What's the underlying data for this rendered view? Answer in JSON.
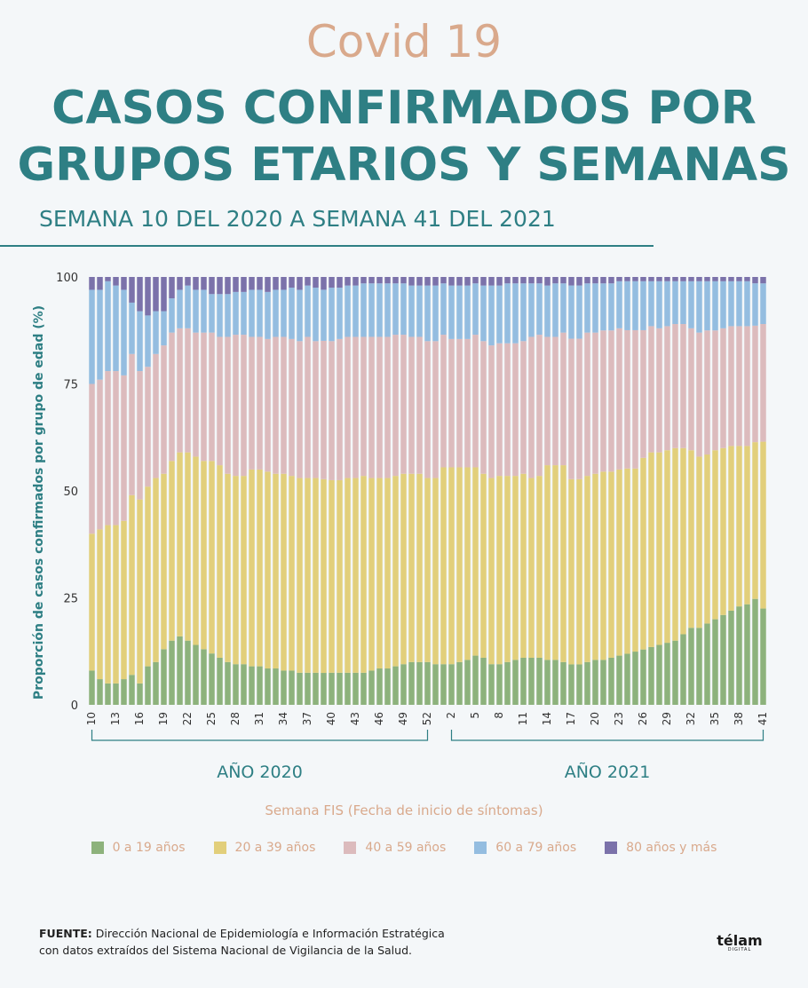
{
  "header": {
    "kicker": "Covid 19",
    "title_line1": "CASOS CONFIRMADOS POR",
    "title_line2": "GRUPOS ETARIOS Y SEMANAS",
    "subtitle": "SEMANA 10 DEL 2020 A SEMANA 41 DEL 2021"
  },
  "footer": {
    "source_label": "FUENTE:",
    "source_line1": "Dirección Nacional de Epidemiología e Información Estratégica",
    "source_line2": "con datos extraídos del Sistema Nacional de Vigilancia de la Salud.",
    "logo": "télam",
    "logo_sub": "DIGITAL"
  },
  "chart_data": {
    "type": "bar",
    "stacked": true,
    "ylabel": "Proporción de casos confirmados por grupo de edad (%)",
    "xlabel": "Semana FIS (Fecha de inicio de síntomas)",
    "ylim": [
      0,
      100
    ],
    "yticks": [
      0,
      25,
      50,
      75,
      100
    ],
    "grid": false,
    "legend_position": "bottom",
    "x": [
      10,
      11,
      12,
      13,
      14,
      15,
      16,
      17,
      18,
      19,
      20,
      21,
      22,
      23,
      24,
      25,
      26,
      27,
      28,
      29,
      30,
      31,
      32,
      33,
      34,
      35,
      36,
      37,
      38,
      39,
      40,
      41,
      42,
      43,
      44,
      45,
      46,
      47,
      48,
      49,
      50,
      51,
      52,
      53,
      1,
      2,
      3,
      4,
      5,
      6,
      7,
      8,
      9,
      10,
      11,
      12,
      13,
      14,
      15,
      16,
      17,
      18,
      19,
      20,
      21,
      22,
      23,
      24,
      25,
      26,
      27,
      28,
      29,
      30,
      31,
      32,
      33,
      34,
      35,
      36,
      37,
      38,
      39,
      40,
      41
    ],
    "x_tick_labels": [
      {
        "index": 0,
        "label": "10"
      },
      {
        "index": 3,
        "label": "13"
      },
      {
        "index": 6,
        "label": "16"
      },
      {
        "index": 9,
        "label": "19"
      },
      {
        "index": 12,
        "label": "22"
      },
      {
        "index": 15,
        "label": "25"
      },
      {
        "index": 18,
        "label": "28"
      },
      {
        "index": 21,
        "label": "31"
      },
      {
        "index": 24,
        "label": "34"
      },
      {
        "index": 27,
        "label": "37"
      },
      {
        "index": 30,
        "label": "40"
      },
      {
        "index": 33,
        "label": "43"
      },
      {
        "index": 36,
        "label": "46"
      },
      {
        "index": 39,
        "label": "49"
      },
      {
        "index": 42,
        "label": "52"
      },
      {
        "index": 45,
        "label": "2"
      },
      {
        "index": 48,
        "label": "5"
      },
      {
        "index": 51,
        "label": "8"
      },
      {
        "index": 54,
        "label": "11"
      },
      {
        "index": 57,
        "label": "14"
      },
      {
        "index": 60,
        "label": "17"
      },
      {
        "index": 63,
        "label": "20"
      },
      {
        "index": 66,
        "label": "23"
      },
      {
        "index": 69,
        "label": "26"
      },
      {
        "index": 72,
        "label": "29"
      },
      {
        "index": 75,
        "label": "32"
      },
      {
        "index": 78,
        "label": "35"
      },
      {
        "index": 81,
        "label": "38"
      },
      {
        "index": 84,
        "label": "41"
      }
    ],
    "year_groups": [
      {
        "label": "AÑO 2020",
        "start_index": 0,
        "end_index": 42
      },
      {
        "label": "AÑO 2021",
        "start_index": 45,
        "end_index": 84
      }
    ],
    "series": [
      {
        "name": "0 a 19 años",
        "color": "#8db27c",
        "values": [
          8,
          6,
          5,
          5,
          6,
          7,
          5,
          9,
          10,
          13,
          15,
          16,
          15,
          14,
          13,
          12,
          11,
          10,
          9.5,
          9.5,
          9,
          9,
          8.5,
          8.5,
          8,
          8,
          7.5,
          7.5,
          7.5,
          7.5,
          7.5,
          7.5,
          7.5,
          7.5,
          7.5,
          8,
          8.5,
          8.5,
          9,
          9.5,
          10,
          10,
          10,
          9.5,
          9.5,
          9.5,
          10,
          10.5,
          11.5,
          11,
          9.5,
          9.5,
          10,
          10.5,
          11,
          11,
          11,
          10.5,
          10.5,
          10,
          9.5,
          9.5,
          10,
          10.5,
          10.5,
          11,
          11.5,
          12,
          12.5,
          13,
          13.5,
          14,
          14.5,
          15,
          16.5,
          18,
          18,
          19,
          20,
          21,
          22,
          23,
          23.5,
          25,
          22.5
        ]
      },
      {
        "name": "20 a 39 años",
        "color": "#e2cf7b",
        "values": [
          32,
          35,
          37,
          37,
          37,
          42,
          43,
          42,
          43,
          41,
          42,
          43,
          44,
          44,
          44,
          45,
          45,
          44,
          44,
          44,
          46,
          46,
          46,
          45.5,
          46,
          45.5,
          45.5,
          45.5,
          45.5,
          45.5,
          45,
          45,
          45.5,
          45.5,
          46,
          45,
          44.5,
          44.5,
          44.5,
          44.5,
          44,
          44,
          43,
          43.5,
          46,
          46,
          45.5,
          45,
          44,
          43,
          43.5,
          44,
          43.5,
          43,
          43,
          42,
          42.5,
          45.5,
          45.5,
          46,
          43.5,
          43.5,
          43.5,
          43.5,
          44,
          43.5,
          43.5,
          43.5,
          43,
          45,
          45.5,
          45,
          45,
          45,
          43.5,
          41.5,
          40,
          39.5,
          39.5,
          39,
          38.5,
          37.5,
          37,
          37,
          39
        ]
      },
      {
        "name": "40 a 59 años",
        "color": "#dcbbbd",
        "values": [
          35,
          35,
          36,
          36,
          34,
          33,
          30,
          28,
          29,
          30,
          30,
          29,
          29,
          29,
          30,
          30,
          30,
          32,
          33,
          33,
          31,
          31,
          31,
          32,
          32,
          32,
          32,
          33,
          32,
          32.5,
          32.5,
          33,
          33,
          33,
          32.5,
          33,
          33,
          33,
          33,
          32.5,
          32,
          32,
          32,
          32,
          31,
          30,
          30,
          30,
          31,
          31,
          31,
          31,
          31,
          31,
          31,
          33,
          33,
          30,
          30,
          31,
          33,
          33,
          33.5,
          33,
          33,
          33,
          33,
          32.5,
          32.5,
          30,
          29.5,
          29,
          29,
          29,
          29,
          28.5,
          29,
          29,
          28,
          28,
          28,
          28,
          28,
          27.5,
          27.5
        ]
      },
      {
        "name": "60 a 79 años",
        "color": "#94bde0",
        "values": [
          22,
          21,
          21,
          20,
          20,
          12,
          14,
          12,
          10,
          8,
          8,
          9,
          10,
          10,
          10,
          9,
          10,
          10,
          10,
          10,
          11,
          11,
          11,
          11,
          11,
          12,
          12,
          12,
          12.5,
          12,
          12.5,
          12,
          12,
          12,
          12.5,
          12.5,
          12.5,
          12.5,
          12,
          12,
          12,
          12,
          13,
          13,
          12,
          12.5,
          12.5,
          12.5,
          12,
          13,
          14,
          13.5,
          14,
          14,
          13.5,
          12.5,
          12,
          12,
          12.5,
          11.5,
          12.5,
          12.5,
          11.5,
          11.5,
          11,
          11,
          11,
          11.5,
          11.5,
          11.5,
          10.5,
          11,
          10.5,
          10,
          10,
          11,
          12,
          11.5,
          11.5,
          11,
          10.5,
          10.5,
          10.5,
          10,
          9.5
        ]
      },
      {
        "name": "80 años y más",
        "color": "#7b72aa",
        "values": [
          3,
          3,
          1,
          2,
          3,
          6,
          8,
          9,
          8,
          8,
          5,
          3,
          2,
          3,
          3,
          4,
          4,
          4,
          3.5,
          3.5,
          3,
          3,
          3.5,
          3,
          3,
          2.5,
          3,
          2,
          2.5,
          3,
          2.5,
          2.5,
          2,
          2,
          1.5,
          1.5,
          1.5,
          1.5,
          1.5,
          1.5,
          2,
          2,
          2,
          2,
          1.5,
          2,
          2,
          2,
          1.5,
          2,
          2,
          2,
          1.5,
          1.5,
          1.5,
          1.5,
          1.5,
          2,
          1.5,
          1.5,
          2,
          2,
          1.5,
          1.5,
          1.5,
          1.5,
          1,
          1,
          1,
          1,
          1,
          1,
          1,
          1,
          1,
          1,
          1,
          1,
          1,
          1,
          1,
          1,
          1,
          1.5,
          1.5
        ]
      }
    ]
  }
}
